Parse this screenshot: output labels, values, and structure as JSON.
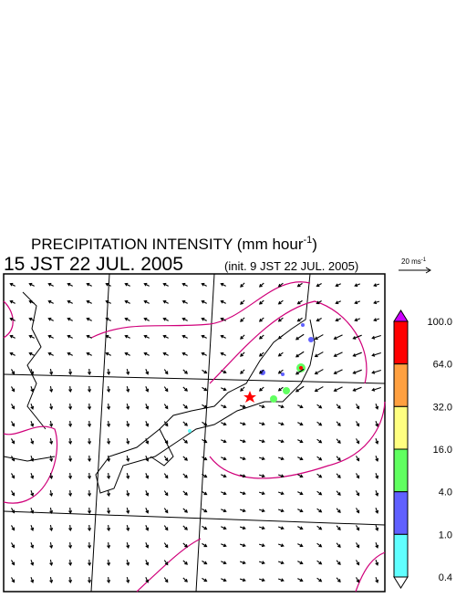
{
  "header": {
    "title": "PRECIPITATION INTENSITY (mm hour",
    "title_exponent": "-1",
    "title_close": ")",
    "valid_time": "15 JST 22 JUL. 2005",
    "init_time": "(init. 9 JST 22 JUL. 2005)"
  },
  "vector_scale": {
    "label": "20 ms",
    "exponent": "-1"
  },
  "colorbar": {
    "top_color": "#cc00ff",
    "bottom_color": "#ffffff",
    "bins": [
      {
        "color": "#ff0000"
      },
      {
        "color": "#ffa040"
      },
      {
        "color": "#ffff80"
      },
      {
        "color": "#60ff60"
      },
      {
        "color": "#6060ff"
      },
      {
        "color": "#60ffff"
      }
    ],
    "labels": [
      "100.0",
      "64.0",
      "32.0",
      "16.0",
      "4.0",
      "1.0",
      "0.4"
    ]
  }
}
